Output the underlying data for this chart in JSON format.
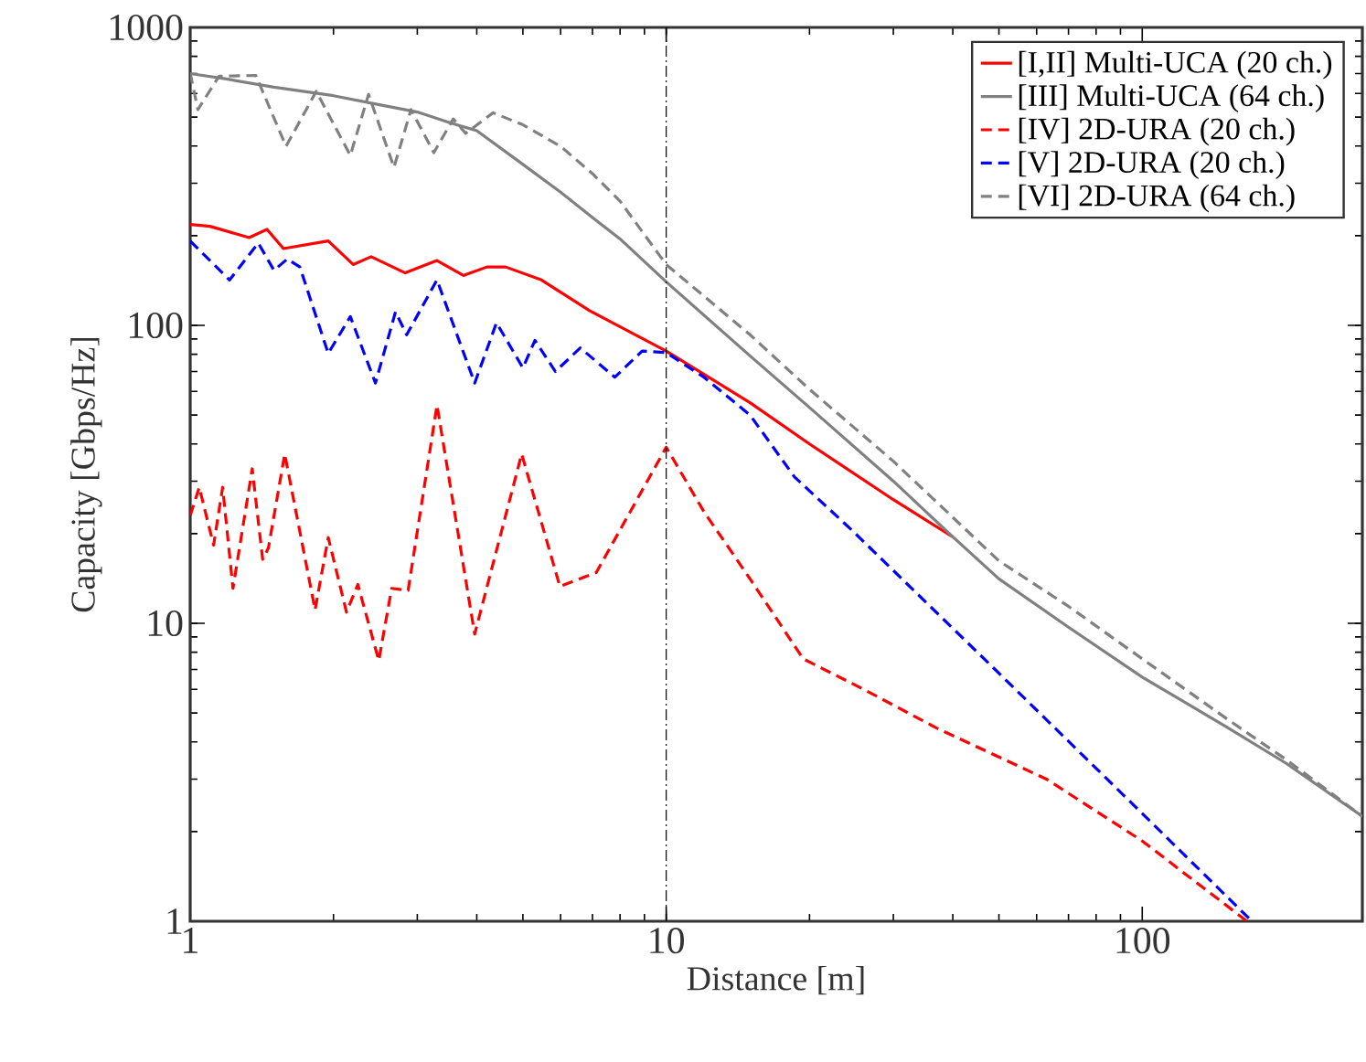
{
  "chart_data": {
    "type": "line",
    "xlabel": "Distance [m]",
    "ylabel": "Capacity [Gbps/Hz]",
    "log": "xy",
    "xlim": [
      1,
      290
    ],
    "ylim": [
      1,
      1000
    ],
    "xticks": [
      1,
      10,
      100
    ],
    "yticks": [
      1,
      10,
      100,
      1000
    ],
    "legend": "top right",
    "grid": false,
    "ref_lines": [
      {
        "axis": "x",
        "value": 10,
        "color": "#000000",
        "line_style": "dashdot"
      }
    ],
    "series": [
      {
        "name": "[I,II]   Multi-UCA (20 ch.)",
        "color": "#ff0000",
        "line_style": "solid",
        "x": [
          1,
          1.1,
          1.33,
          1.45,
          1.57,
          1.95,
          2.2,
          2.4,
          2.83,
          3.3,
          3.75,
          4.2,
          4.6,
          5.47,
          6.9,
          10,
          15,
          20,
          30,
          40
        ],
        "values": [
          218,
          215,
          197,
          210,
          181,
          192,
          160,
          170,
          150,
          165,
          147,
          157,
          157,
          142,
          112,
          82,
          55,
          40,
          26,
          19.5
        ]
      },
      {
        "name": "[III]   Multi-UCA (64 ch.)",
        "color": "#808080",
        "line_style": "solid",
        "x": [
          1,
          1.2,
          1.5,
          2,
          2.5,
          3,
          3.5,
          4,
          5,
          6,
          7,
          8,
          10,
          15,
          20,
          30,
          40,
          50,
          70,
          100,
          150,
          200,
          290
        ],
        "values": [
          700,
          670,
          630,
          590,
          550,
          520,
          480,
          450,
          347,
          280,
          230,
          195,
          140,
          79,
          53,
          30,
          19.5,
          14.1,
          9.7,
          6.6,
          4.5,
          3.4,
          2.25
        ]
      },
      {
        "name": "[IV]     2D-URA (20 ch.)",
        "color": "#ff0000",
        "line_style": "dashed",
        "x": [
          1,
          1.045,
          1.12,
          1.17,
          1.23,
          1.35,
          1.42,
          1.46,
          1.58,
          1.83,
          1.95,
          2.13,
          2.25,
          2.49,
          2.65,
          2.87,
          3.3,
          3.96,
          4.97,
          5.98,
          7.13,
          10,
          12,
          15,
          19.4,
          26,
          37,
          62.9,
          100,
          166
        ],
        "values": [
          23,
          28.6,
          18.3,
          28.6,
          13.1,
          33,
          16.4,
          17.9,
          37,
          11.1,
          19.4,
          10.9,
          13.5,
          7.5,
          13.1,
          12.9,
          54,
          9.2,
          37,
          13.3,
          14.8,
          39,
          23.7,
          14.1,
          7.6,
          6,
          4.45,
          3,
          1.86,
          1
        ]
      },
      {
        "name": "[V]      2D-URA (20 ch.)",
        "color": "#0000ff",
        "line_style": "dashed",
        "x": [
          1,
          1.21,
          1.39,
          1.5,
          1.6,
          1.7,
          1.95,
          2.17,
          2.45,
          2.7,
          2.85,
          3.3,
          3.96,
          4.4,
          5,
          5.3,
          5.85,
          6.6,
          7.8,
          8.9,
          10,
          12,
          15,
          18.6,
          24.5,
          50,
          100,
          170
        ],
        "values": [
          192,
          142,
          189,
          153,
          167,
          157,
          80.5,
          107,
          64,
          111,
          93,
          142,
          64,
          102,
          72,
          89,
          70,
          84,
          67,
          82,
          81,
          67,
          50,
          31,
          20.6,
          6.8,
          2.3,
          1
        ]
      },
      {
        "name": "[VI]     2D-URA (64 ch.)",
        "color": "#808080",
        "line_style": "dashed",
        "x": [
          1,
          1.038,
          1.15,
          1.374,
          1.59,
          1.84,
          2.17,
          2.37,
          2.68,
          2.91,
          3.25,
          3.57,
          3.79,
          4.33,
          5,
          6,
          7,
          8,
          10,
          15,
          20,
          30,
          50,
          70,
          100,
          150,
          200,
          290
        ],
        "values": [
          703,
          530,
          686,
          690,
          399,
          610,
          372,
          596,
          339,
          530,
          380,
          493,
          441,
          517,
          471,
          399,
          323,
          261,
          160,
          93,
          61,
          35,
          16.2,
          11.4,
          7.6,
          4.8,
          3.5,
          2.25
        ]
      }
    ]
  }
}
